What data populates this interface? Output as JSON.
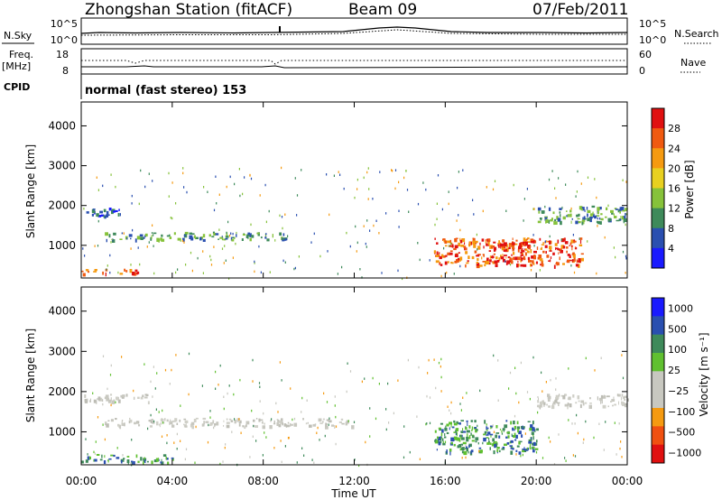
{
  "header": {
    "station": "Zhongshan Station (fitACF)",
    "beam": "Beam 09",
    "date": "07/Feb/2011"
  },
  "strips": {
    "nsky_label": "N.Sky",
    "nsearch_label": "N.Search",
    "nsky_ticks": [
      "10^5",
      "10^0"
    ],
    "nsearch_ticks": [
      "10^5",
      "10^0"
    ],
    "freq_label": "Freq.",
    "freq_unit": "[MHz]",
    "freq_ticks": [
      "18",
      "8"
    ],
    "nave_label": "Nave",
    "nave_ticks": [
      "60",
      "0"
    ],
    "cpid_label": "CPID",
    "cpid_text": "normal (fast stereo) 153"
  },
  "chart_data": [
    {
      "type": "heatmap",
      "name": "power",
      "ylabel": "Slant Range [km]",
      "yticks": [
        "4000",
        "3000",
        "2000",
        "1000"
      ],
      "ylim": [
        180,
        4600
      ],
      "x_ticks": [
        "00:00",
        "04:00",
        "08:00",
        "12:00",
        "16:00",
        "20:00",
        "00:00"
      ],
      "colorbar": {
        "label": "Power [dB]",
        "ticks": [
          "28",
          "24",
          "20",
          "16",
          "12",
          "8",
          "4"
        ],
        "colors": [
          "#1a1aff",
          "#2a4fb0",
          "#3e8a5a",
          "#86c23a",
          "#e8d020",
          "#f59a10",
          "#f05a10",
          "#e01010"
        ],
        "range": [
          0,
          32
        ]
      },
      "bands": [
        {
          "x": [
            0.0,
            2.0
          ],
          "range_km": [
            1750,
            1950
          ],
          "level": "weak"
        },
        {
          "x": [
            1.0,
            9.0
          ],
          "range_km": [
            1150,
            1350
          ],
          "level": "moderate"
        },
        {
          "x": [
            0.0,
            2.5
          ],
          "range_km": [
            300,
            420
          ],
          "level": "strong"
        },
        {
          "x": [
            15.5,
            22.0
          ],
          "range_km": [
            500,
            1200
          ],
          "level": "strong"
        },
        {
          "x": [
            18.0,
            19.5
          ],
          "range_km": [
            600,
            1100
          ],
          "level": "very strong"
        },
        {
          "x": [
            20.0,
            24.0
          ],
          "range_km": [
            1600,
            2000
          ],
          "level": "moderate"
        }
      ]
    },
    {
      "type": "heatmap",
      "name": "velocity",
      "ylabel": "Slant Range [km]",
      "yticks": [
        "4000",
        "3000",
        "2000",
        "1000"
      ],
      "ylim": [
        180,
        4600
      ],
      "xlabel": "Time UT",
      "x_ticks": [
        "00:00",
        "04:00",
        "08:00",
        "12:00",
        "16:00",
        "20:00",
        "00:00"
      ],
      "colorbar": {
        "label": "Velocity [m s⁻¹]",
        "ticks": [
          "1000",
          "500",
          "100",
          "25",
          "−25",
          "−100",
          "−500",
          "−1000"
        ],
        "colors": [
          "#e01010",
          "#f05010",
          "#f59a10",
          "#c8c8c0",
          "#c8c8c0",
          "#60c030",
          "#3e8a5a",
          "#2a4fb0",
          "#1a1aff"
        ],
        "range": [
          -1200,
          1200
        ]
      },
      "bands": [
        {
          "x": [
            0.0,
            3.0
          ],
          "range_km": [
            1750,
            1950
          ],
          "level": "ground scatter"
        },
        {
          "x": [
            1.0,
            12.0
          ],
          "range_km": [
            1150,
            1350
          ],
          "level": "ground scatter"
        },
        {
          "x": [
            0.0,
            4.0
          ],
          "range_km": [
            250,
            450
          ],
          "level": "positive"
        },
        {
          "x": [
            15.5,
            20.0
          ],
          "range_km": [
            500,
            1300
          ],
          "level": "positive"
        },
        {
          "x": [
            20.0,
            24.0
          ],
          "range_km": [
            1650,
            1950
          ],
          "level": "ground scatter"
        }
      ]
    }
  ]
}
